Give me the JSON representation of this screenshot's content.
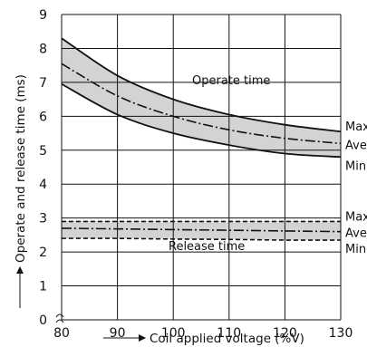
{
  "chart_data": {
    "type": "line",
    "xlabel": "Coil applied voltage (%V)",
    "ylabel": "Operate and release time (ms)",
    "xlim": [
      80,
      130
    ],
    "ylim": [
      0,
      9
    ],
    "x_ticks": [
      80,
      90,
      100,
      110,
      120,
      130
    ],
    "y_ticks": [
      0,
      1,
      2,
      3,
      4,
      5,
      6,
      7,
      8,
      9
    ],
    "grid": true,
    "x": [
      80,
      90,
      100,
      110,
      120,
      130
    ],
    "groups": [
      {
        "label": "Operate time",
        "band_shaded": true,
        "series": [
          {
            "name": "Max.",
            "style": "solid",
            "values": [
              8.3,
              7.2,
              6.5,
              6.05,
              5.75,
              5.55
            ]
          },
          {
            "name": "Ave.",
            "style": "dashdot",
            "values": [
              7.55,
              6.6,
              6.0,
              5.6,
              5.35,
              5.2
            ]
          },
          {
            "name": "Min.",
            "style": "solid",
            "values": [
              6.95,
              6.05,
              5.5,
              5.15,
              4.9,
              4.8
            ]
          }
        ]
      },
      {
        "label": "Release time",
        "band_shaded": true,
        "series": [
          {
            "name": "Max.",
            "style": "dashed",
            "values": [
              2.9,
              2.9,
              2.9,
              2.9,
              2.9,
              2.9
            ]
          },
          {
            "name": "Ave.",
            "style": "dashdot",
            "values": [
              2.7,
              2.68,
              2.66,
              2.64,
              2.62,
              2.6
            ]
          },
          {
            "name": "Min.",
            "style": "dashed",
            "values": [
              2.4,
              2.4,
              2.38,
              2.37,
              2.35,
              2.35
            ]
          }
        ]
      }
    ]
  }
}
